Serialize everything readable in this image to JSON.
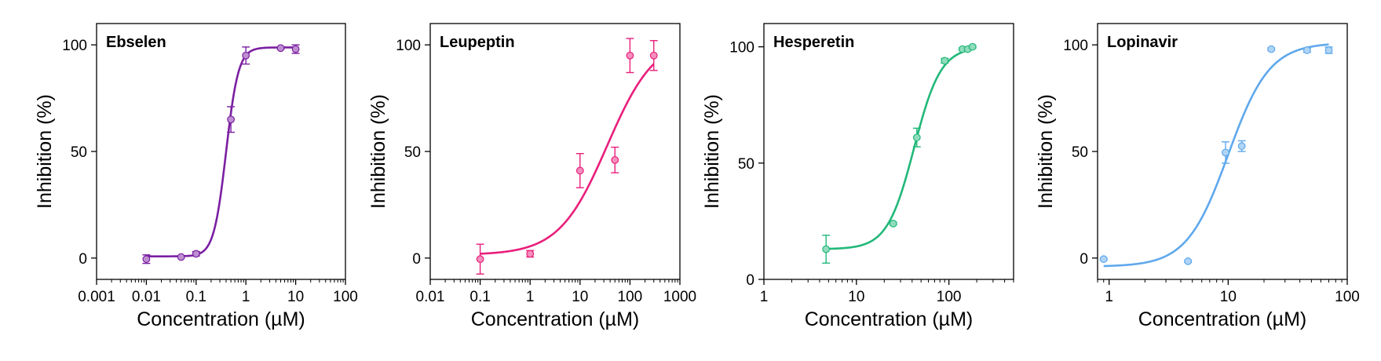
{
  "chart_data": [
    {
      "type": "scatter",
      "title": "Ebselen",
      "xlabel": "Concentration (µM)",
      "ylabel": "Inhibition (%)",
      "xscale": "log",
      "xlim": [
        0.001,
        100
      ],
      "ylim": [
        -10,
        110
      ],
      "xticks": [
        0.001,
        0.01,
        0.1,
        1,
        10,
        100
      ],
      "xtick_labels": [
        "0.001",
        "0.01",
        "0.1",
        "1",
        "10",
        "100"
      ],
      "yticks": [
        0,
        50,
        100
      ],
      "ytick_labels": [
        "0",
        "50",
        "100"
      ],
      "color": "#7B1FA2",
      "points": [
        {
          "x": 0.01,
          "y": -0.5,
          "err": 2
        },
        {
          "x": 0.05,
          "y": 0.5,
          "err": 0
        },
        {
          "x": 0.1,
          "y": 2,
          "err": 1
        },
        {
          "x": 0.5,
          "y": 65,
          "err": 6
        },
        {
          "x": 1,
          "y": 95,
          "err": 4
        },
        {
          "x": 5,
          "y": 98.5,
          "err": 0.5
        },
        {
          "x": 10,
          "y": 98,
          "err": 2
        }
      ],
      "fit": {
        "bottom": 0.8,
        "top": 98.8,
        "ec50": 0.4,
        "hill": 3.5,
        "x_range": [
          0.01,
          10
        ]
      }
    },
    {
      "type": "scatter",
      "title": "Leupeptin",
      "xlabel": "Concentration (µM)",
      "ylabel": "Inhibition (%)",
      "xscale": "log",
      "xlim": [
        0.01,
        1000
      ],
      "ylim": [
        -10,
        110
      ],
      "xticks": [
        0.01,
        0.1,
        1,
        10,
        100,
        1000
      ],
      "xtick_labels": [
        "0.01",
        "0.1",
        "1",
        "10",
        "100",
        "1000"
      ],
      "yticks": [
        0,
        50,
        100
      ],
      "ytick_labels": [
        "0",
        "50",
        "100"
      ],
      "color": "#E91E7B",
      "points": [
        {
          "x": 0.1,
          "y": -0.5,
          "err": 7
        },
        {
          "x": 1,
          "y": 2,
          "err": 1.5
        },
        {
          "x": 10,
          "y": 41,
          "err": 8
        },
        {
          "x": 50,
          "y": 46,
          "err": 6
        },
        {
          "x": 100,
          "y": 95,
          "err": 8
        },
        {
          "x": 300,
          "y": 95,
          "err": 7
        }
      ],
      "fit": {
        "bottom": 1.5,
        "top": 104,
        "ec50": 35,
        "hill": 0.9,
        "x_range": [
          0.1,
          300
        ]
      }
    },
    {
      "type": "scatter",
      "title": "Hesperetin",
      "xlabel": "Concentration (µM)",
      "ylabel": "Inhibition (%)",
      "xscale": "log",
      "xlim": [
        1,
        500
      ],
      "ylim": [
        0,
        110
      ],
      "xticks": [
        1,
        10,
        100
      ],
      "xtick_labels": [
        "1",
        "10",
        "100"
      ],
      "yticks": [
        0,
        50,
        100
      ],
      "ytick_labels": [
        "0",
        "50",
        "100"
      ],
      "color": "#22B87A",
      "points": [
        {
          "x": 4.7,
          "y": 13,
          "err": 6
        },
        {
          "x": 25,
          "y": 24,
          "err": 0.5
        },
        {
          "x": 45,
          "y": 61,
          "err": 4
        },
        {
          "x": 90,
          "y": 94,
          "err": 1
        },
        {
          "x": 140,
          "y": 99,
          "err": 0.5
        },
        {
          "x": 160,
          "y": 99,
          "err": 0.5
        },
        {
          "x": 180,
          "y": 100,
          "err": 0.5
        }
      ],
      "fit": {
        "bottom": 13,
        "top": 100,
        "ec50": 42,
        "hill": 3,
        "x_range": [
          4.7,
          180
        ]
      }
    },
    {
      "type": "scatter",
      "title": "Lopinavir",
      "xlabel": "Concentration (µM)",
      "ylabel": "Inhibition (%)",
      "xscale": "log",
      "xlim": [
        0.8,
        100
      ],
      "ylim": [
        -10,
        110
      ],
      "xticks": [
        1,
        10,
        100
      ],
      "xtick_labels": [
        "1",
        "10",
        "100"
      ],
      "yticks": [
        0,
        50,
        100
      ],
      "ytick_labels": [
        "0",
        "50",
        "100"
      ],
      "color": "#5FA8EC",
      "points": [
        {
          "x": 0.9,
          "y": -0.5,
          "err": 0.5
        },
        {
          "x": 4.6,
          "y": -1.5,
          "err": 0.5
        },
        {
          "x": 9.5,
          "y": 49.5,
          "err": 5
        },
        {
          "x": 13,
          "y": 52.5,
          "err": 2.5
        },
        {
          "x": 23,
          "y": 98,
          "err": 0.5
        },
        {
          "x": 46,
          "y": 97.5,
          "err": 1
        },
        {
          "x": 70,
          "y": 97.5,
          "err": 1.5
        }
      ],
      "fit": {
        "bottom": -4,
        "top": 101,
        "ec50": 10,
        "hill": 2.5,
        "x_range": [
          0.9,
          70
        ]
      }
    }
  ]
}
